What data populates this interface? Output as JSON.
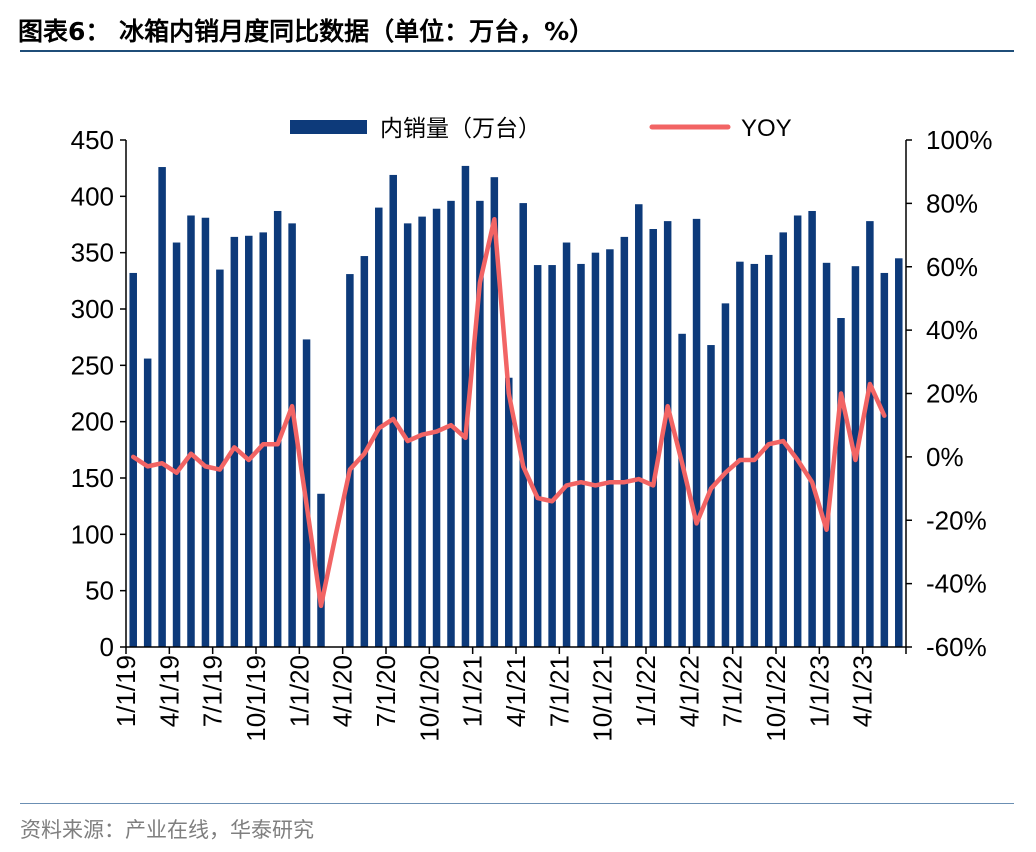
{
  "header": {
    "title": "图表6：  冰箱内销月度同比数据（单位：万台，%）"
  },
  "footer": {
    "source": "资料来源：产业在线，华泰研究"
  },
  "chart_data": {
    "type": "bar+line",
    "title": "",
    "legend_position": "top",
    "grid": false,
    "colors": {
      "bar": "#0d3a7a",
      "line": "#f26464"
    },
    "x_tick_labels": [
      "1/1/19",
      "4/1/19",
      "7/1/19",
      "10/1/19",
      "1/1/20",
      "4/1/20",
      "7/1/20",
      "10/1/20",
      "1/1/21",
      "4/1/21",
      "7/1/21",
      "10/1/21",
      "1/1/22",
      "4/1/22",
      "7/1/22",
      "10/1/22",
      "1/1/23",
      "4/1/23"
    ],
    "y_left": {
      "min": 0,
      "max": 450,
      "step": 50,
      "ticks": [
        "0",
        "50",
        "100",
        "150",
        "200",
        "250",
        "300",
        "350",
        "400",
        "450"
      ]
    },
    "y_right": {
      "min": -60,
      "max": 100,
      "step": 20,
      "ticks": [
        "-60%",
        "-40%",
        "-20%",
        "0%",
        "20%",
        "40%",
        "60%",
        "80%",
        "100%"
      ]
    },
    "categories": [
      "2019-01",
      "2019-02",
      "2019-03",
      "2019-04",
      "2019-05",
      "2019-06",
      "2019-07",
      "2019-08",
      "2019-09",
      "2019-10",
      "2019-11",
      "2019-12",
      "2020-01",
      "2020-02",
      "2020-03",
      "2020-04",
      "2020-05",
      "2020-06",
      "2020-07",
      "2020-08",
      "2020-09",
      "2020-10",
      "2020-11",
      "2020-12",
      "2021-01",
      "2021-02",
      "2021-03",
      "2021-04",
      "2021-05",
      "2021-06",
      "2021-07",
      "2021-08",
      "2021-09",
      "2021-10",
      "2021-11",
      "2021-12",
      "2022-01",
      "2022-02",
      "2022-03",
      "2022-04",
      "2022-05",
      "2022-06",
      "2022-07",
      "2022-08",
      "2022-09",
      "2022-10",
      "2022-11",
      "2022-12",
      "2023-01",
      "2023-02",
      "2023-03",
      "2023-04",
      "2023-05",
      "2023-06"
    ],
    "series": [
      {
        "name": "内销量（万台）",
        "type": "bar",
        "axis": "left",
        "values": [
          332,
          256,
          426,
          359,
          383,
          381,
          335,
          364,
          365,
          368,
          387,
          376,
          273,
          136,
          null,
          331,
          347,
          390,
          419,
          376,
          382,
          389,
          396,
          427,
          396,
          417,
          239,
          394,
          339,
          339,
          359,
          340,
          350,
          353,
          364,
          393,
          371,
          378,
          278,
          380,
          268,
          305,
          342,
          340,
          348,
          368,
          383,
          387,
          341,
          292,
          338,
          378,
          332,
          345
        ]
      },
      {
        "name": "YOY",
        "type": "line",
        "axis": "right",
        "values": [
          0,
          -3,
          -2,
          -5,
          1,
          -3,
          -4,
          3,
          -1,
          4,
          4,
          16,
          -15,
          -47,
          -25,
          -4,
          1,
          9,
          12,
          5,
          7,
          8,
          10,
          6,
          55,
          75,
          20,
          -3,
          -13,
          -14,
          -9,
          -8,
          -9,
          -8,
          -8,
          -7,
          -9,
          16,
          -2,
          -21,
          -10,
          -5,
          -1,
          -1,
          4,
          5,
          -1,
          -8,
          -23,
          20,
          -1,
          23,
          13,
          null
        ]
      }
    ]
  }
}
